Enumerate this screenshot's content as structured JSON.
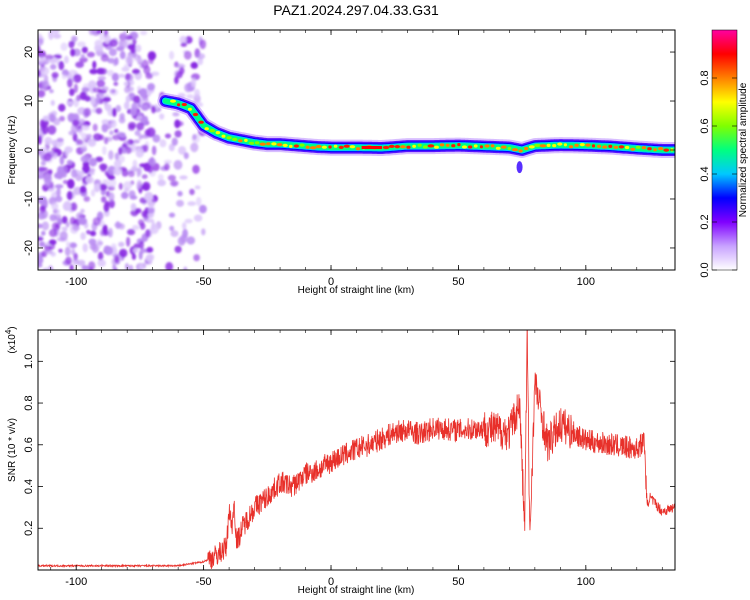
{
  "title": "PAZ1.2024.297.04.33.G31",
  "chart_data": [
    {
      "type": "heatmap",
      "title": "PAZ1.2024.297.04.33.G31",
      "xlabel": "Height of straight line (km)",
      "ylabel": "Frequency (Hz)",
      "xlim": [
        -115,
        135
      ],
      "ylim": [
        -24.5,
        24.5
      ],
      "x_ticks": [
        -100,
        -50,
        0,
        50,
        100
      ],
      "y_ticks": [
        -20,
        -10,
        0,
        10,
        20
      ],
      "colorbar": {
        "label": "Normalized spectral amplitude",
        "range": [
          0,
          1
        ],
        "ticks": [
          "0.0",
          "0.2",
          "0.4",
          "0.6",
          "0.8"
        ],
        "colors": [
          "#ffffff",
          "#c8a2ff",
          "#8000ff",
          "#0000ff",
          "#00c8ff",
          "#00ff80",
          "#80ff00",
          "#ffff00",
          "#ff8000",
          "#ff0000",
          "#ff00a0"
        ]
      },
      "ridge": {
        "x": [
          -65,
          -60,
          -55,
          -50,
          -45,
          -40,
          -35,
          -30,
          -25,
          -20,
          -15,
          -10,
          -5,
          0,
          10,
          20,
          30,
          40,
          50,
          60,
          70,
          75,
          80,
          90,
          100,
          110,
          120,
          130,
          135
        ],
        "frequency": [
          10,
          9.5,
          8.5,
          5,
          3.5,
          2.5,
          2,
          1.5,
          1.2,
          1.2,
          1,
          0.8,
          0.6,
          0.5,
          0.5,
          0.4,
          0.8,
          0.8,
          0.9,
          0.7,
          0.5,
          0,
          0.8,
          1,
          0.9,
          0.7,
          0.3,
          0,
          0
        ]
      },
      "noise_region_x": [
        -115,
        -50
      ]
    },
    {
      "type": "line",
      "xlabel": "Height of straight line (km)",
      "ylabel": "SNR (10 * v/v)",
      "y_multiplier": "(x10",
      "y_multiplier_exp": "4",
      "y_multiplier_close": ")",
      "xlim": [
        -115,
        135
      ],
      "ylim": [
        0,
        1.15
      ],
      "x_ticks": [
        -100,
        -50,
        0,
        50,
        100
      ],
      "y_ticks": [
        "0.2",
        "0.4",
        "0.6",
        "0.8",
        "1.0"
      ],
      "color": "#e8302a",
      "series": [
        {
          "x": [
            -115,
            -100,
            -80,
            -60,
            -50,
            -45,
            -41,
            -40,
            -39,
            -38,
            -37,
            -35,
            -30,
            -25,
            -20,
            -15,
            -10,
            -5,
            0,
            5,
            10,
            15,
            20,
            25,
            30,
            35,
            40,
            50,
            60,
            70,
            74,
            76,
            77,
            78,
            80,
            85,
            90,
            100,
            110,
            120,
            123,
            124,
            125,
            130,
            135
          ],
          "y": [
            0.02,
            0.02,
            0.02,
            0.02,
            0.04,
            0.07,
            0.11,
            0.3,
            0.2,
            0.32,
            0.13,
            0.2,
            0.3,
            0.35,
            0.42,
            0.4,
            0.46,
            0.48,
            0.52,
            0.55,
            0.58,
            0.6,
            0.63,
            0.66,
            0.67,
            0.65,
            0.68,
            0.67,
            0.68,
            0.66,
            0.8,
            0.2,
            1.15,
            0.15,
            0.9,
            0.6,
            0.7,
            0.62,
            0.6,
            0.58,
            0.62,
            0.3,
            0.35,
            0.28,
            0.3
          ]
        }
      ]
    }
  ]
}
